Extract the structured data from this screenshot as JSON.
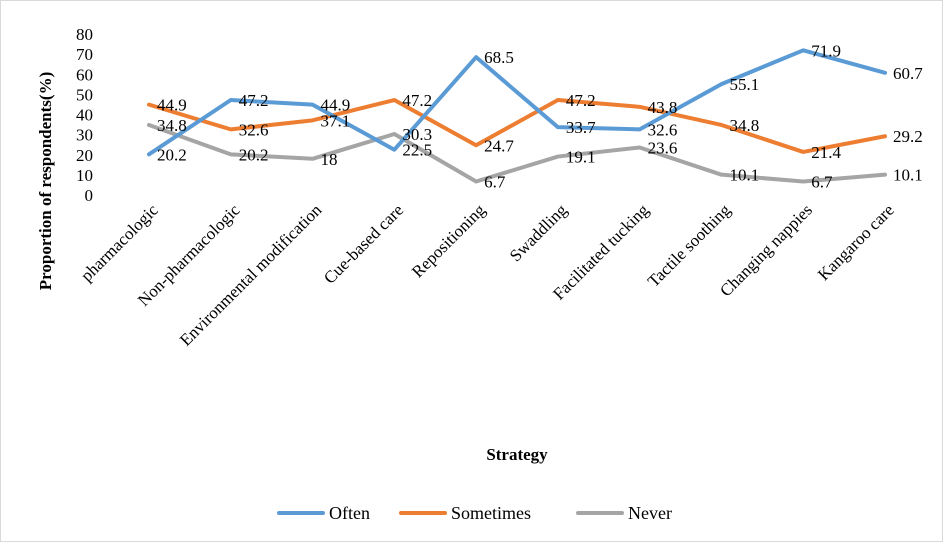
{
  "chart_data": {
    "type": "line",
    "title": "",
    "xlabel": "Strategy",
    "ylabel": "Proportion of respondents(%)",
    "ylim": [
      0,
      80
    ],
    "yticks": [
      0,
      10,
      20,
      30,
      40,
      50,
      60,
      70,
      80
    ],
    "grid": false,
    "legend_position": "bottom",
    "categories": [
      "pharmacologic",
      "Non-pharmacologic",
      "Environmental modification",
      "Cue-based care",
      "Repositioning",
      "Swaddling",
      "Facilitated tucking",
      "Tactile soothing",
      "Changing nappies",
      "Kangaroo care"
    ],
    "series": [
      {
        "name": "Often",
        "color": "#5B9BD5",
        "values": [
          20.2,
          47.2,
          44.9,
          22.5,
          68.5,
          33.7,
          32.6,
          55.1,
          71.9,
          60.7
        ]
      },
      {
        "name": "Sometimes",
        "color": "#ED7D31",
        "values": [
          44.9,
          32.6,
          37.1,
          47.2,
          24.7,
          47.2,
          43.8,
          34.8,
          21.4,
          29.2
        ]
      },
      {
        "name": "Never",
        "color": "#A5A5A5",
        "values": [
          34.8,
          20.2,
          18,
          30.3,
          6.7,
          19.1,
          23.6,
          10.1,
          6.7,
          10.1
        ]
      }
    ]
  }
}
